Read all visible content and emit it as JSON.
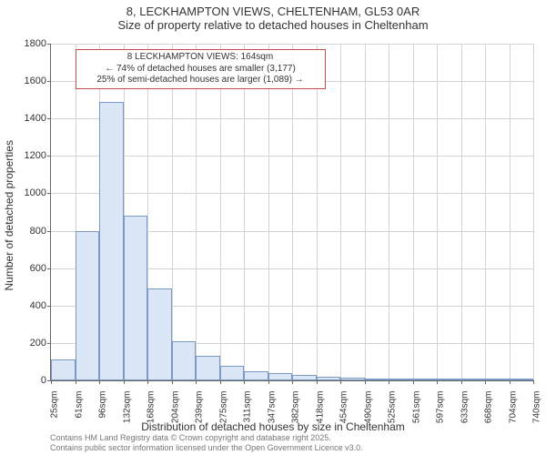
{
  "title": {
    "line1": "8, LECKHAMPTON VIEWS, CHELTENHAM, GL53 0AR",
    "line2": "Size of property relative to detached houses in Cheltenham"
  },
  "chart": {
    "type": "histogram",
    "ylim": [
      0,
      1800
    ],
    "ytick_step": 200,
    "bar_fill": "#dbe7f6",
    "bar_stroke": "#7a9ac4",
    "grid_color": "#d3d3d3",
    "axis_color": "#666666",
    "background": "#ffffff",
    "yticks": [
      0,
      200,
      400,
      600,
      800,
      1000,
      1200,
      1400,
      1600,
      1800
    ],
    "xtick_labels": [
      "25sqm",
      "61sqm",
      "96sqm",
      "132sqm",
      "168sqm",
      "204sqm",
      "239sqm",
      "275sqm",
      "311sqm",
      "347sqm",
      "382sqm",
      "418sqm",
      "454sqm",
      "490sqm",
      "525sqm",
      "561sqm",
      "597sqm",
      "633sqm",
      "668sqm",
      "704sqm",
      "740sqm"
    ],
    "values": [
      110,
      800,
      1490,
      880,
      490,
      210,
      130,
      80,
      50,
      40,
      30,
      20,
      15,
      5,
      5,
      5,
      5,
      5,
      5,
      5
    ],
    "ylabel": "Number of detached properties",
    "xlabel": "Distribution of detached houses by size in Cheltenham",
    "marker_bin_index": 4,
    "annotation_color": "#c94a4a"
  },
  "annotation": {
    "line1": "8 LECKHAMPTON VIEWS: 164sqm",
    "line2": "← 74% of detached houses are smaller (3,177)",
    "line3": "25% of semi-detached houses are larger (1,089) →"
  },
  "footer": {
    "line1": "Contains HM Land Registry data © Crown copyright and database right 2025.",
    "line2": "Contains public sector information licensed under the Open Government Licence v3.0."
  }
}
